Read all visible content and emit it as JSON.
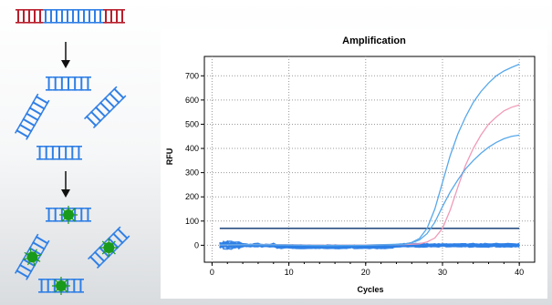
{
  "colors": {
    "dna_template": "#b81e2c",
    "dna_target": "#2f7fe6",
    "probe": "#1a9a1a",
    "threshold": "#2a4f82",
    "baseline": "#2f7fe6",
    "curve_blue": "#58a8ea",
    "curve_pink": "#f09ab8"
  },
  "diagram": {
    "icons": [
      "arrow-down-icon",
      "dna-strand-icon",
      "fluorescent-probe-icon"
    ]
  },
  "chart_data": {
    "type": "line",
    "title": "Amplification",
    "xlabel": "Cycles",
    "ylabel": "RFU",
    "xlim": [
      -1,
      42
    ],
    "ylim": [
      -70,
      780
    ],
    "xticks": [
      0,
      10,
      20,
      30,
      40
    ],
    "yticks": [
      0,
      100,
      200,
      300,
      400,
      500,
      600,
      700
    ],
    "grid": true,
    "threshold": 70,
    "series": [
      {
        "color": "#58a8ea",
        "x": [
          1,
          5,
          10,
          15,
          20,
          25,
          26,
          27,
          28,
          29,
          30,
          31,
          32,
          33,
          34,
          35,
          36,
          37,
          38,
          39,
          40
        ],
        "y": [
          2,
          3,
          2,
          0,
          1,
          5,
          12,
          28,
          70,
          150,
          260,
          370,
          460,
          530,
          590,
          635,
          670,
          700,
          720,
          735,
          748
        ]
      },
      {
        "color": "#f09ab8",
        "x": [
          1,
          5,
          10,
          15,
          20,
          25,
          27,
          28,
          29,
          30,
          31,
          32,
          33,
          34,
          35,
          36,
          37,
          38,
          39,
          40
        ],
        "y": [
          1,
          2,
          2,
          0,
          1,
          3,
          6,
          14,
          30,
          70,
          145,
          240,
          330,
          400,
          455,
          500,
          530,
          555,
          570,
          580
        ]
      },
      {
        "color": "#58a8ea",
        "x": [
          1,
          5,
          10,
          15,
          20,
          25,
          26,
          27,
          28,
          29,
          30,
          31,
          32,
          33,
          34,
          35,
          36,
          37,
          38,
          39,
          40
        ],
        "y": [
          2,
          2,
          1,
          -1,
          0,
          4,
          10,
          22,
          48,
          95,
          160,
          220,
          270,
          315,
          350,
          380,
          405,
          425,
          440,
          450,
          455
        ]
      }
    ]
  }
}
